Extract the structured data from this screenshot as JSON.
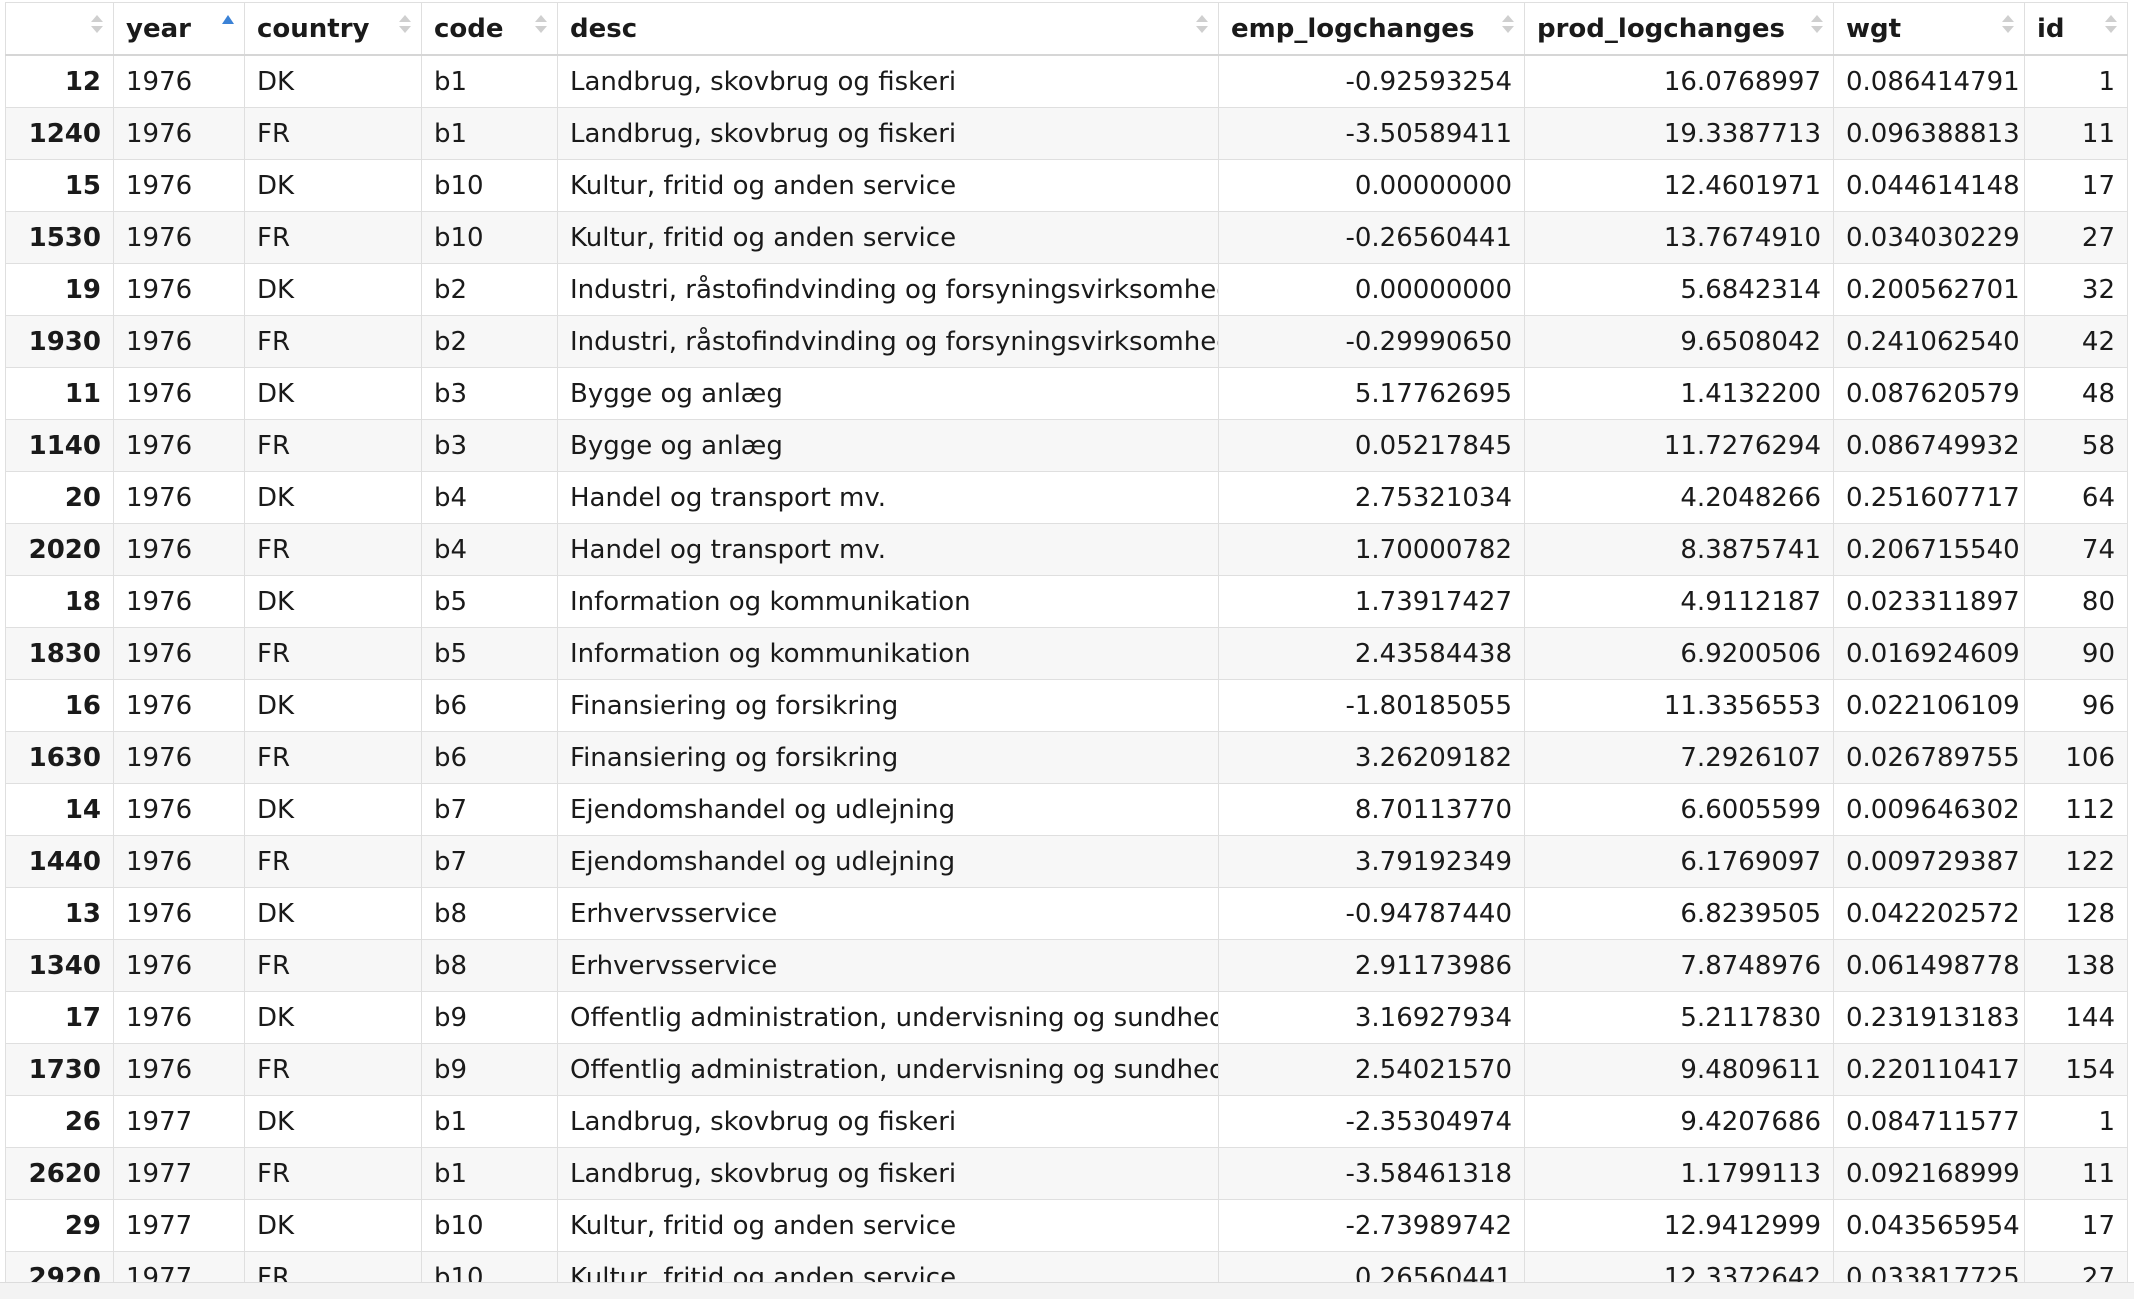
{
  "columns": [
    {
      "key": "rn",
      "label": "",
      "sort": "none"
    },
    {
      "key": "year",
      "label": "year",
      "sort": "asc"
    },
    {
      "key": "country",
      "label": "country",
      "sort": "none"
    },
    {
      "key": "code",
      "label": "code",
      "sort": "none"
    },
    {
      "key": "desc",
      "label": "desc",
      "sort": "none"
    },
    {
      "key": "emp",
      "label": "emp_logchanges",
      "sort": "none"
    },
    {
      "key": "prod",
      "label": "prod_logchanges",
      "sort": "none"
    },
    {
      "key": "wgt",
      "label": "wgt",
      "sort": "none"
    },
    {
      "key": "id",
      "label": "id",
      "sort": "none"
    }
  ],
  "rows": [
    {
      "rn": "12",
      "year": "1976",
      "country": "DK",
      "code": "b1",
      "desc": "Landbrug, skovbrug og fiskeri",
      "emp": "-0.92593254",
      "prod": "16.0768997",
      "wgt": "0.086414791",
      "id": "1"
    },
    {
      "rn": "1240",
      "year": "1976",
      "country": "FR",
      "code": "b1",
      "desc": "Landbrug, skovbrug og fiskeri",
      "emp": "-3.50589411",
      "prod": "19.3387713",
      "wgt": "0.096388813",
      "id": "11"
    },
    {
      "rn": "15",
      "year": "1976",
      "country": "DK",
      "code": "b10",
      "desc": "Kultur, fritid og anden service",
      "emp": "0.00000000",
      "prod": "12.4601971",
      "wgt": "0.044614148",
      "id": "17"
    },
    {
      "rn": "1530",
      "year": "1976",
      "country": "FR",
      "code": "b10",
      "desc": "Kultur, fritid og anden service",
      "emp": "-0.26560441",
      "prod": "13.7674910",
      "wgt": "0.034030229",
      "id": "27"
    },
    {
      "rn": "19",
      "year": "1976",
      "country": "DK",
      "code": "b2",
      "desc": "Industri, råstofindvinding og forsyningsvirksomhed",
      "emp": "0.00000000",
      "prod": "5.6842314",
      "wgt": "0.200562701",
      "id": "32"
    },
    {
      "rn": "1930",
      "year": "1976",
      "country": "FR",
      "code": "b2",
      "desc": "Industri, råstofindvinding og forsyningsvirksomhed",
      "emp": "-0.29990650",
      "prod": "9.6508042",
      "wgt": "0.241062540",
      "id": "42"
    },
    {
      "rn": "11",
      "year": "1976",
      "country": "DK",
      "code": "b3",
      "desc": "Bygge og anlæg",
      "emp": "5.17762695",
      "prod": "1.4132200",
      "wgt": "0.087620579",
      "id": "48"
    },
    {
      "rn": "1140",
      "year": "1976",
      "country": "FR",
      "code": "b3",
      "desc": "Bygge og anlæg",
      "emp": "0.05217845",
      "prod": "11.7276294",
      "wgt": "0.086749932",
      "id": "58"
    },
    {
      "rn": "20",
      "year": "1976",
      "country": "DK",
      "code": "b4",
      "desc": "Handel og transport mv.",
      "emp": "2.75321034",
      "prod": "4.2048266",
      "wgt": "0.251607717",
      "id": "64"
    },
    {
      "rn": "2020",
      "year": "1976",
      "country": "FR",
      "code": "b4",
      "desc": "Handel og transport mv.",
      "emp": "1.70000782",
      "prod": "8.3875741",
      "wgt": "0.206715540",
      "id": "74"
    },
    {
      "rn": "18",
      "year": "1976",
      "country": "DK",
      "code": "b5",
      "desc": "Information og kommunikation",
      "emp": "1.73917427",
      "prod": "4.9112187",
      "wgt": "0.023311897",
      "id": "80"
    },
    {
      "rn": "1830",
      "year": "1976",
      "country": "FR",
      "code": "b5",
      "desc": "Information og kommunikation",
      "emp": "2.43584438",
      "prod": "6.9200506",
      "wgt": "0.016924609",
      "id": "90"
    },
    {
      "rn": "16",
      "year": "1976",
      "country": "DK",
      "code": "b6",
      "desc": "Finansiering og forsikring",
      "emp": "-1.80185055",
      "prod": "11.3356553",
      "wgt": "0.022106109",
      "id": "96"
    },
    {
      "rn": "1630",
      "year": "1976",
      "country": "FR",
      "code": "b6",
      "desc": "Finansiering og forsikring",
      "emp": "3.26209182",
      "prod": "7.2926107",
      "wgt": "0.026789755",
      "id": "106"
    },
    {
      "rn": "14",
      "year": "1976",
      "country": "DK",
      "code": "b7",
      "desc": "Ejendomshandel og udlejning",
      "emp": "8.70113770",
      "prod": "6.6005599",
      "wgt": "0.009646302",
      "id": "112"
    },
    {
      "rn": "1440",
      "year": "1976",
      "country": "FR",
      "code": "b7",
      "desc": "Ejendomshandel og udlejning",
      "emp": "3.79192349",
      "prod": "6.1769097",
      "wgt": "0.009729387",
      "id": "122"
    },
    {
      "rn": "13",
      "year": "1976",
      "country": "DK",
      "code": "b8",
      "desc": "Erhvervsservice",
      "emp": "-0.94787440",
      "prod": "6.8239505",
      "wgt": "0.042202572",
      "id": "128"
    },
    {
      "rn": "1340",
      "year": "1976",
      "country": "FR",
      "code": "b8",
      "desc": "Erhvervsservice",
      "emp": "2.91173986",
      "prod": "7.8748976",
      "wgt": "0.061498778",
      "id": "138"
    },
    {
      "rn": "17",
      "year": "1976",
      "country": "DK",
      "code": "b9",
      "desc": "Offentlig administration, undervisning og sundhed",
      "emp": "3.16927934",
      "prod": "5.2117830",
      "wgt": "0.231913183",
      "id": "144"
    },
    {
      "rn": "1730",
      "year": "1976",
      "country": "FR",
      "code": "b9",
      "desc": "Offentlig administration, undervisning og sundhed",
      "emp": "2.54021570",
      "prod": "9.4809611",
      "wgt": "0.220110417",
      "id": "154"
    },
    {
      "rn": "26",
      "year": "1977",
      "country": "DK",
      "code": "b1",
      "desc": "Landbrug, skovbrug og fiskeri",
      "emp": "-2.35304974",
      "prod": "9.4207686",
      "wgt": "0.084711577",
      "id": "1"
    },
    {
      "rn": "2620",
      "year": "1977",
      "country": "FR",
      "code": "b1",
      "desc": "Landbrug, skovbrug og fiskeri",
      "emp": "-3.58461318",
      "prod": "1.1799113",
      "wgt": "0.092168999",
      "id": "11"
    },
    {
      "rn": "29",
      "year": "1977",
      "country": "DK",
      "code": "b10",
      "desc": "Kultur, fritid og anden service",
      "emp": "-2.73989742",
      "prod": "12.9412999",
      "wgt": "0.043565954",
      "id": "17"
    },
    {
      "rn": "2920",
      "year": "1977",
      "country": "FR",
      "code": "b10",
      "desc": "Kultur, fritid og anden service",
      "emp": "0.26560441",
      "prod": "12.3372642",
      "wgt": "0.033817725",
      "id": "27"
    }
  ],
  "footer": {
    "status": ""
  }
}
